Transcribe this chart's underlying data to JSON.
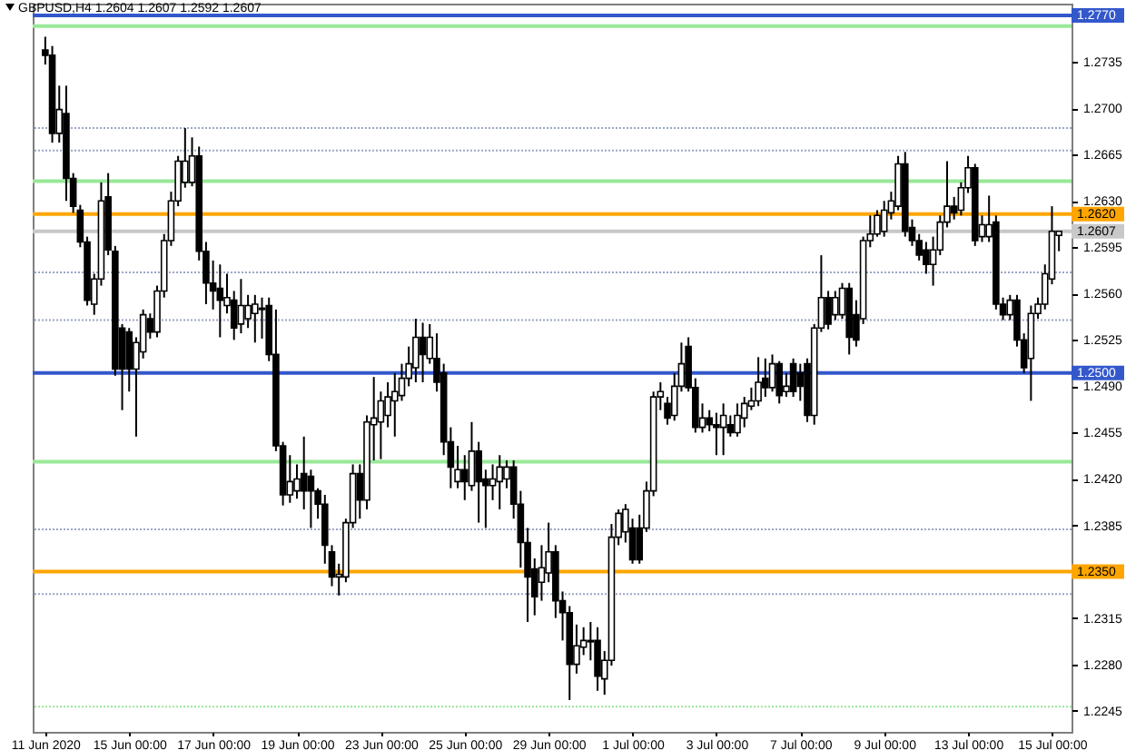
{
  "chart_data": {
    "type": "candlestick",
    "title": "GBPUSD,H4 1.2604 1.2607 1.2592 1.2607",
    "color": "#000000",
    "categories": [
      "11 Jun 2020",
      null,
      null,
      null,
      null,
      null,
      null,
      null,
      null,
      null,
      null,
      null,
      "15 Jun 00:00",
      null,
      null,
      null,
      null,
      null,
      null,
      null,
      null,
      null,
      null,
      null,
      "17 Jun 00:00",
      null,
      null,
      null,
      null,
      null,
      null,
      null,
      null,
      null,
      null,
      null,
      "19 Jun 00:00",
      null,
      null,
      null,
      null,
      null,
      null,
      null,
      null,
      null,
      null,
      null,
      "23 Jun 00:00",
      null,
      null,
      null,
      null,
      null,
      null,
      null,
      null,
      null,
      null,
      null,
      "25 Jun 00:00",
      null,
      null,
      null,
      null,
      null,
      null,
      null,
      null,
      null,
      null,
      null,
      "29 Jun 00:00",
      null,
      null,
      null,
      null,
      null,
      null,
      null,
      null,
      null,
      null,
      null,
      "1 Jul 00:00",
      null,
      null,
      null,
      null,
      null,
      null,
      null,
      null,
      null,
      null,
      null,
      "3 Jul 00:00",
      null,
      null,
      null,
      null,
      null,
      null,
      null,
      null,
      null,
      null,
      null,
      "7 Jul 00:00",
      null,
      null,
      null,
      null,
      null,
      null,
      null,
      null,
      null,
      null,
      null,
      "9 Jul 00:00",
      null,
      null,
      null,
      null,
      null,
      null,
      null,
      null,
      null,
      null,
      null,
      "13 Jul 00:00",
      null,
      null,
      null,
      null,
      null,
      null,
      null,
      null,
      null,
      null,
      null,
      "15 Jul 00:00",
      null
    ],
    "ohlc": [
      [
        1.2744,
        1.2754,
        1.2733,
        1.274
      ],
      [
        1.274,
        1.2747,
        1.2674,
        1.2681
      ],
      [
        1.2681,
        1.2717,
        1.2674,
        1.2699
      ],
      [
        1.2696,
        1.2717,
        1.263,
        1.2647
      ],
      [
        1.2647,
        1.2651,
        1.2621,
        1.2626
      ],
      [
        1.2623,
        1.2627,
        1.2595,
        1.2599
      ],
      [
        1.2599,
        1.2603,
        1.2551,
        1.2555
      ],
      [
        1.2552,
        1.2575,
        1.2544,
        1.2571
      ],
      [
        1.2571,
        1.2644,
        1.2566,
        1.263
      ],
      [
        1.2633,
        1.2651,
        1.2589,
        1.2593
      ],
      [
        1.2592,
        1.2596,
        1.2498,
        1.2503
      ],
      [
        1.2534,
        1.2537,
        1.2472,
        1.2503
      ],
      [
        1.2531,
        1.2534,
        1.2486,
        1.2503
      ],
      [
        1.2503,
        1.2527,
        1.2452,
        1.2523
      ],
      [
        1.2516,
        1.2548,
        1.2511,
        1.2544
      ],
      [
        1.2541,
        1.2545,
        1.2526,
        1.2531
      ],
      [
        1.2531,
        1.2566,
        1.2527,
        1.2562
      ],
      [
        1.2562,
        1.2605,
        1.2557,
        1.26
      ],
      [
        1.26,
        1.2637,
        1.2596,
        1.263
      ],
      [
        1.263,
        1.2664,
        1.2626,
        1.266
      ],
      [
        1.2644,
        1.2685,
        1.264,
        1.266
      ],
      [
        1.2644,
        1.2678,
        1.2641,
        1.2664
      ],
      [
        1.2664,
        1.2671,
        1.2585,
        1.2592
      ],
      [
        1.2592,
        1.2599,
        1.2552,
        1.2568
      ],
      [
        1.2568,
        1.2585,
        1.2548,
        1.2562
      ],
      [
        1.2564,
        1.2582,
        1.2527,
        1.2555
      ],
      [
        1.2551,
        1.2575,
        1.2545,
        1.2557
      ],
      [
        1.2555,
        1.2562,
        1.2525,
        1.2534
      ],
      [
        1.2537,
        1.2571,
        1.253,
        1.2551
      ],
      [
        1.2541,
        1.2559,
        1.2534,
        1.2551
      ],
      [
        1.2545,
        1.2559,
        1.2523,
        1.2552
      ],
      [
        1.2549,
        1.2557,
        1.2526,
        1.2548
      ],
      [
        1.2551,
        1.2557,
        1.2509,
        1.2514
      ],
      [
        1.2514,
        1.2548,
        1.2441,
        1.2445
      ],
      [
        1.2445,
        1.2448,
        1.24,
        1.2408
      ],
      [
        1.2408,
        1.2438,
        1.2402,
        1.2418
      ],
      [
        1.2411,
        1.2431,
        1.2405,
        1.242
      ],
      [
        1.2424,
        1.2452,
        1.2397,
        1.2411
      ],
      [
        1.2422,
        1.2427,
        1.2383,
        1.2411
      ],
      [
        1.2411,
        1.2413,
        1.239,
        1.2401
      ],
      [
        1.2401,
        1.2408,
        1.2356,
        1.237
      ],
      [
        1.2365,
        1.237,
        1.2339,
        1.2346
      ],
      [
        1.2346,
        1.2356,
        1.2332,
        1.2348
      ],
      [
        1.2346,
        1.239,
        1.2342,
        1.2387
      ],
      [
        1.2387,
        1.2431,
        1.2383,
        1.2424
      ],
      [
        1.2424,
        1.2431,
        1.239,
        1.2404
      ],
      [
        1.2404,
        1.2468,
        1.2397,
        1.2463
      ],
      [
        1.2461,
        1.2497,
        1.2434,
        1.2466
      ],
      [
        1.2463,
        1.2486,
        1.2435,
        1.2479
      ],
      [
        1.2468,
        1.2493,
        1.2459,
        1.2482
      ],
      [
        1.2479,
        1.25,
        1.2452,
        1.2486
      ],
      [
        1.2483,
        1.2507,
        1.2479,
        1.2496
      ],
      [
        1.2496,
        1.252,
        1.249,
        1.2507
      ],
      [
        1.2504,
        1.2541,
        1.2493,
        1.2527
      ],
      [
        1.2527,
        1.2538,
        1.2493,
        1.2514
      ],
      [
        1.2511,
        1.2537,
        1.2507,
        1.2527
      ],
      [
        1.2511,
        1.253,
        1.2486,
        1.2493
      ],
      [
        1.25,
        1.2507,
        1.2438,
        1.2448
      ],
      [
        1.2448,
        1.2459,
        1.2413,
        1.2429
      ],
      [
        1.2418,
        1.2445,
        1.2413,
        1.2427
      ],
      [
        1.2427,
        1.2438,
        1.2404,
        1.2418
      ],
      [
        1.2415,
        1.2463,
        1.2411,
        1.2441
      ],
      [
        1.2441,
        1.2448,
        1.2387,
        1.2418
      ],
      [
        1.242,
        1.2427,
        1.2383,
        1.2415
      ],
      [
        1.2415,
        1.2431,
        1.2404,
        1.242
      ],
      [
        1.2418,
        1.2438,
        1.2397,
        1.2429
      ],
      [
        1.242,
        1.2434,
        1.2413,
        1.2429
      ],
      [
        1.2429,
        1.2434,
        1.239,
        1.2401
      ],
      [
        1.2401,
        1.2411,
        1.2353,
        1.2372
      ],
      [
        1.2372,
        1.2383,
        1.2312,
        1.2346
      ],
      [
        1.2352,
        1.236,
        1.2317,
        1.2331
      ],
      [
        1.2342,
        1.237,
        1.2328,
        1.2353
      ],
      [
        1.2349,
        1.2387,
        1.2342,
        1.2365
      ],
      [
        1.2365,
        1.237,
        1.2315,
        1.2328
      ],
      [
        1.2328,
        1.2335,
        1.2298,
        1.2319
      ],
      [
        1.2319,
        1.2324,
        1.2253,
        1.228
      ],
      [
        1.228,
        1.231,
        1.2273,
        1.2294
      ],
      [
        1.2293,
        1.2308,
        1.2287,
        1.2298
      ],
      [
        1.2297,
        1.2312,
        1.2283,
        1.2298
      ],
      [
        1.2298,
        1.2308,
        1.226,
        1.2271
      ],
      [
        1.2269,
        1.229,
        1.2257,
        1.2283
      ],
      [
        1.2283,
        1.2386,
        1.2279,
        1.2376
      ],
      [
        1.2376,
        1.2397,
        1.237,
        1.2394
      ],
      [
        1.238,
        1.2401,
        1.2372,
        1.2397
      ],
      [
        1.2383,
        1.239,
        1.2356,
        1.2359
      ],
      [
        1.2383,
        1.2393,
        1.2356,
        1.2359
      ],
      [
        1.2383,
        1.2418,
        1.238,
        1.2411
      ],
      [
        1.2411,
        1.2486,
        1.2407,
        1.2482
      ],
      [
        1.2482,
        1.2493,
        1.2472,
        1.2486
      ],
      [
        1.2477,
        1.2482,
        1.2461,
        1.2466
      ],
      [
        1.2468,
        1.25,
        1.2464,
        1.249
      ],
      [
        1.249,
        1.2523,
        1.2486,
        1.2507
      ],
      [
        1.252,
        1.2527,
        1.2486,
        1.2489
      ],
      [
        1.2489,
        1.2496,
        1.2455,
        1.2459
      ],
      [
        1.2459,
        1.2477,
        1.2455,
        1.2466
      ],
      [
        1.2466,
        1.2472,
        1.2456,
        1.2461
      ],
      [
        1.2461,
        1.247,
        1.2438,
        1.2459
      ],
      [
        1.2459,
        1.2477,
        1.2438,
        1.2468
      ],
      [
        1.2461,
        1.2468,
        1.2452,
        1.2455
      ],
      [
        1.2455,
        1.2477,
        1.2452,
        1.2468
      ],
      [
        1.2466,
        1.2482,
        1.2459,
        1.2477
      ],
      [
        1.2475,
        1.2489,
        1.2472,
        1.2479
      ],
      [
        1.2479,
        1.2512,
        1.2475,
        1.2493
      ],
      [
        1.2496,
        1.2511,
        1.2482,
        1.2489
      ],
      [
        1.2489,
        1.2514,
        1.2486,
        1.2507
      ],
      [
        1.2507,
        1.2509,
        1.2477,
        1.2483
      ],
      [
        1.2486,
        1.25,
        1.2482,
        1.249
      ],
      [
        1.2507,
        1.2511,
        1.2482,
        1.2486
      ],
      [
        1.25,
        1.2507,
        1.2479,
        1.249
      ],
      [
        1.2507,
        1.2511,
        1.2463,
        1.2468
      ],
      [
        1.2468,
        1.2537,
        1.2461,
        1.2534
      ],
      [
        1.2534,
        1.2589,
        1.2531,
        1.2557
      ],
      [
        1.2557,
        1.2562,
        1.2533,
        1.2537
      ],
      [
        1.2544,
        1.2562,
        1.254,
        1.2557
      ],
      [
        1.2544,
        1.2568,
        1.2541,
        1.2564
      ],
      [
        1.2564,
        1.2568,
        1.2514,
        1.2527
      ],
      [
        1.2544,
        1.2555,
        1.252,
        1.2525
      ],
      [
        1.2541,
        1.2603,
        1.2537,
        1.26
      ],
      [
        1.26,
        1.2619,
        1.2595,
        1.2605
      ],
      [
        1.2605,
        1.2623,
        1.2603,
        1.2619
      ],
      [
        1.2607,
        1.263,
        1.2603,
        1.2623
      ],
      [
        1.2621,
        1.2637,
        1.2616,
        1.263
      ],
      [
        1.2626,
        1.2664,
        1.2623,
        1.2658
      ],
      [
        1.2658,
        1.2667,
        1.2603,
        1.2607
      ],
      [
        1.261,
        1.2616,
        1.2596,
        1.26
      ],
      [
        1.26,
        1.2605,
        1.2585,
        1.2589
      ],
      [
        1.2593,
        1.2599,
        1.2575,
        1.2582
      ],
      [
        1.2582,
        1.2603,
        1.2566,
        1.2593
      ],
      [
        1.2593,
        1.2619,
        1.2589,
        1.2614
      ],
      [
        1.2614,
        1.266,
        1.261,
        1.2626
      ],
      [
        1.2626,
        1.2633,
        1.2616,
        1.2621
      ],
      [
        1.2623,
        1.2644,
        1.2619,
        1.264
      ],
      [
        1.264,
        1.2664,
        1.2636,
        1.2655
      ],
      [
        1.2655,
        1.2658,
        1.2596,
        1.26
      ],
      [
        1.2603,
        1.2619,
        1.2599,
        1.2612
      ],
      [
        1.2603,
        1.2634,
        1.2599,
        1.2612
      ],
      [
        1.2614,
        1.2619,
        1.2548,
        1.2552
      ],
      [
        1.2552,
        1.2557,
        1.254,
        1.2544
      ],
      [
        1.2544,
        1.2559,
        1.254,
        1.2555
      ],
      [
        1.2555,
        1.2559,
        1.252,
        1.2525
      ],
      [
        1.2525,
        1.253,
        1.25,
        1.2504
      ],
      [
        1.2511,
        1.2551,
        1.2479,
        1.2545
      ],
      [
        1.2545,
        1.2557,
        1.2541,
        1.2552
      ],
      [
        1.2552,
        1.2582,
        1.2548,
        1.2575
      ],
      [
        1.2571,
        1.2626,
        1.2567,
        1.2607
      ],
      [
        1.2604,
        1.2607,
        1.2592,
        1.2607
      ]
    ],
    "ylim": [
      1.2229,
      1.2779
    ],
    "yticks": [
      1.2735,
      {
        "value": 1.27,
        "label": "1.2700"
      },
      1.2665,
      {
        "value": 1.263,
        "label": "1.2630"
      },
      1.2595,
      {
        "value": 1.256,
        "label": "1.2560"
      },
      1.2525,
      {
        "value": 1.249,
        "label": "1.2490"
      },
      1.2455,
      {
        "value": 1.242,
        "label": "1.2420"
      },
      1.2385,
      1.2315,
      {
        "value": 1.228,
        "label": "1.2280"
      },
      1.2245
    ],
    "ref_lines": [
      {
        "axis": "y",
        "value": 1.277,
        "label": "1.2770",
        "color": "#3358cc"
      },
      {
        "axis": "y",
        "value": 1.2762,
        "color": "#98e898"
      },
      {
        "axis": "y",
        "value": 1.2685,
        "color": "#9aa6c4",
        "line_style": "dotted"
      },
      {
        "axis": "y",
        "value": 1.2668,
        "color": "#9aa6c4",
        "line_style": "dotted"
      },
      {
        "axis": "y",
        "value": 1.2645,
        "color": "#98e898"
      },
      {
        "axis": "y",
        "value": 1.262,
        "label": "1.2620",
        "color": "#ffa500"
      },
      {
        "axis": "y",
        "value": 1.2607,
        "label": "1.2607",
        "color": "#c8c8c8"
      },
      {
        "axis": "y",
        "value": 1.2576,
        "color": "#9aa6c4",
        "line_style": "dotted"
      },
      {
        "axis": "y",
        "value": 1.254,
        "color": "#9aa6c4",
        "line_style": "dotted"
      },
      {
        "axis": "y",
        "value": 1.25,
        "label": "1.2500",
        "color": "#3358cc"
      },
      {
        "axis": "y",
        "value": 1.2433,
        "color": "#98e898"
      },
      {
        "axis": "y",
        "value": 1.2382,
        "color": "#9aa6c4",
        "line_style": "dotted"
      },
      {
        "axis": "y",
        "value": 1.235,
        "label": "1.2350",
        "color": "#ffa500"
      },
      {
        "axis": "y",
        "value": 1.2333,
        "color": "#9aa6c4",
        "line_style": "dotted"
      },
      {
        "axis": "y",
        "value": 1.2248,
        "color": "#98e898",
        "line_style": "dotted"
      }
    ]
  }
}
